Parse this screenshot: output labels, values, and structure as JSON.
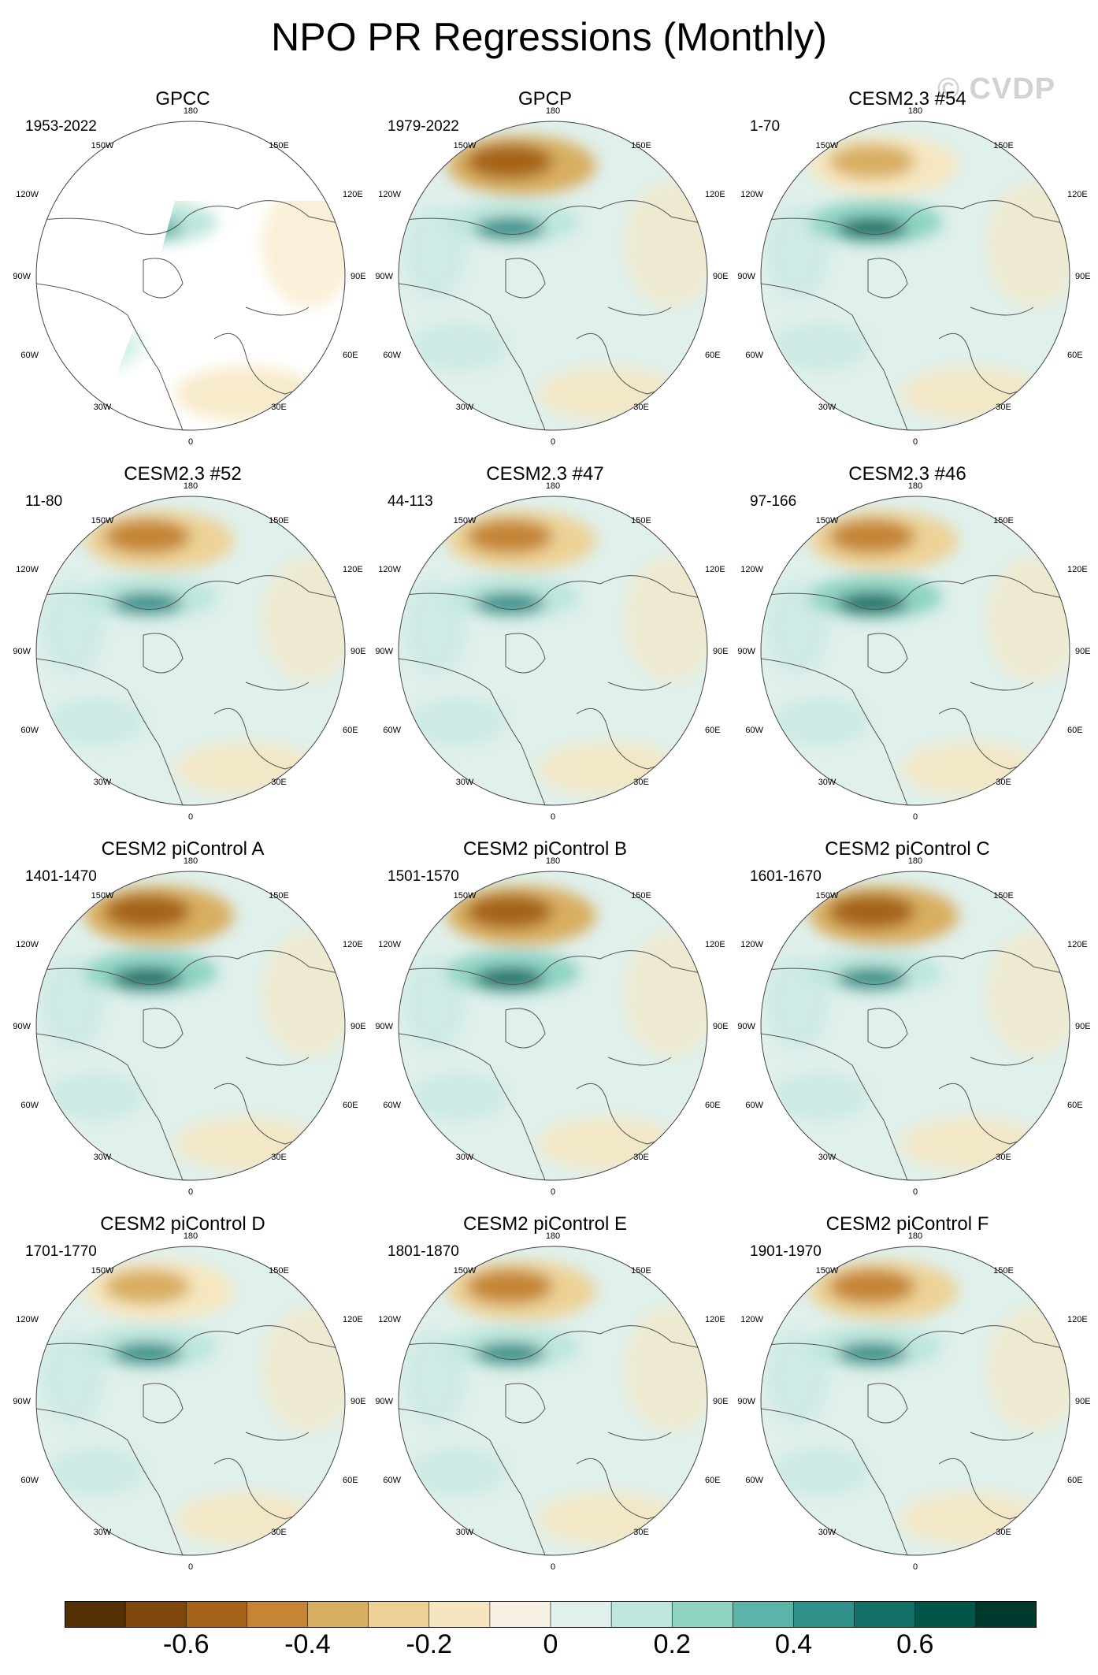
{
  "title": "NPO PR Regressions (Monthly)",
  "watermark": "© CVDP",
  "map_labels": {
    "top": "180",
    "bottom": "0",
    "upper_left": "150W",
    "upper_right": "150E",
    "mid_upper_left": "120W",
    "mid_upper_right": "120E",
    "left": "90W",
    "right": "90E",
    "mid_lower_left": "60W",
    "mid_lower_right": "60E",
    "lower_left": "30W",
    "lower_right": "30E"
  },
  "panels": [
    {
      "name": "GPCC",
      "period": "1953-2022",
      "missing_data": true,
      "pacific_dry": 0.05,
      "pacific_wet": 0.35
    },
    {
      "name": "GPCP",
      "period": "1979-2022",
      "missing_data": false,
      "pacific_dry": 0.6,
      "pacific_wet": 0.5
    },
    {
      "name": "CESM2.3 #54",
      "period": "1-70",
      "missing_data": false,
      "pacific_dry": 0.35,
      "pacific_wet": 0.6
    },
    {
      "name": "CESM2.3 #52",
      "period": "11-80",
      "missing_data": false,
      "pacific_dry": 0.45,
      "pacific_wet": 0.55
    },
    {
      "name": "CESM2.3 #47",
      "period": "44-113",
      "missing_data": false,
      "pacific_dry": 0.45,
      "pacific_wet": 0.55
    },
    {
      "name": "CESM2.3 #46",
      "period": "97-166",
      "missing_data": false,
      "pacific_dry": 0.45,
      "pacific_wet": 0.6
    },
    {
      "name": "CESM2 piControl A",
      "period": "1401-1470",
      "missing_data": false,
      "pacific_dry": 0.7,
      "pacific_wet": 0.65
    },
    {
      "name": "CESM2 piControl B",
      "period": "1501-1570",
      "missing_data": false,
      "pacific_dry": 0.65,
      "pacific_wet": 0.6
    },
    {
      "name": "CESM2 piControl C",
      "period": "1601-1670",
      "missing_data": false,
      "pacific_dry": 0.6,
      "pacific_wet": 0.55
    },
    {
      "name": "CESM2 piControl D",
      "period": "1701-1770",
      "missing_data": false,
      "pacific_dry": 0.4,
      "pacific_wet": 0.55
    },
    {
      "name": "CESM2 piControl E",
      "period": "1801-1870",
      "missing_data": false,
      "pacific_dry": 0.55,
      "pacific_wet": 0.5
    },
    {
      "name": "CESM2 piControl F",
      "period": "1901-1970",
      "missing_data": false,
      "pacific_dry": 0.45,
      "pacific_wet": 0.55
    }
  ],
  "chart_data": {
    "type": "heatmap",
    "projection": "north polar stereographic",
    "title": "NPO PR Regressions (Monthly)",
    "colorbar": {
      "levels": [
        -0.7,
        -0.6,
        -0.5,
        -0.4,
        -0.3,
        -0.2,
        -0.1,
        0,
        0.1,
        0.2,
        0.3,
        0.4,
        0.5,
        0.6,
        0.7
      ],
      "colors": [
        "#543005",
        "#7f470e",
        "#a56419",
        "#c58535",
        "#d8ae60",
        "#ecd296",
        "#f6e6bf",
        "#f6f0e3",
        "#e0f0ec",
        "#bee6dd",
        "#8fd3c3",
        "#5cb4a8",
        "#2e9089",
        "#137066",
        "#015549",
        "#00392d"
      ],
      "tick_values": [
        -0.6,
        -0.4,
        -0.2,
        0,
        0.2,
        0.4,
        0.6
      ],
      "tick_labels": [
        "-0.6",
        "-0.4",
        "-0.2",
        "0",
        "0.2",
        "0.4",
        "0.6"
      ]
    }
  }
}
